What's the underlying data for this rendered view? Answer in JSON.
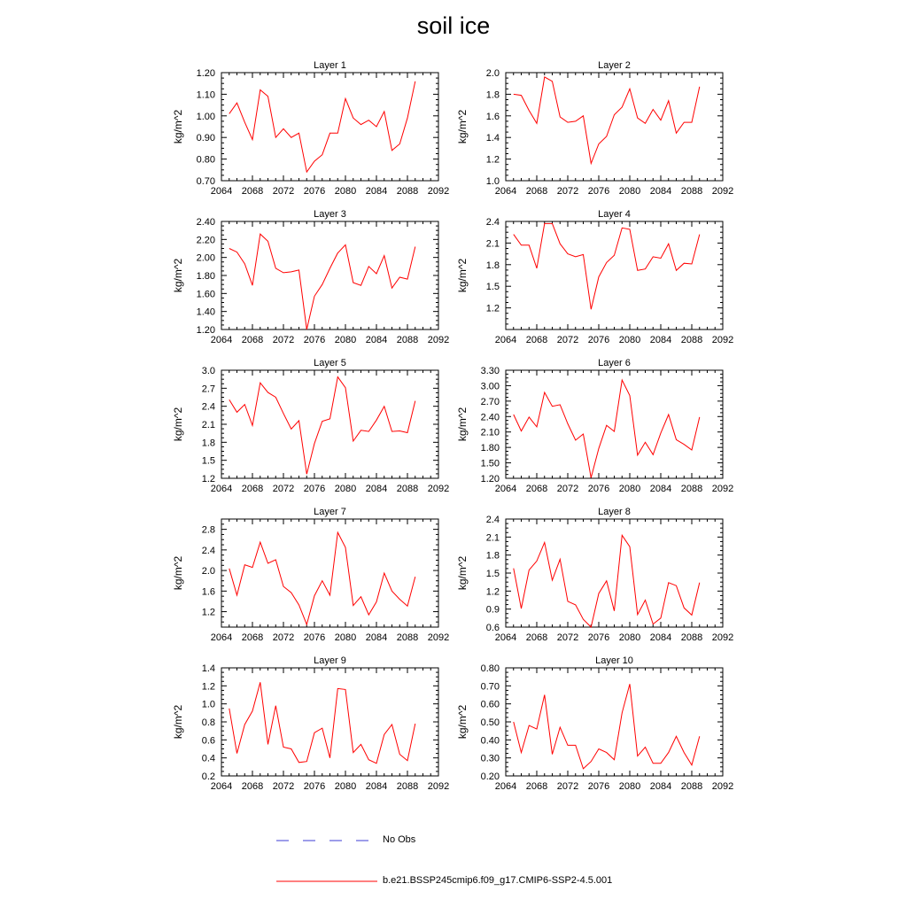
{
  "title": "soil ice",
  "legend": {
    "obs_label": "No Obs",
    "model_label": "b.e21.BSSP245cmip6.f09_g17.CMIP6-SSP2-4.5.001",
    "obs_color": "#3b3bd6",
    "model_color": "#ff0000"
  },
  "chart_data": [
    {
      "type": "line",
      "title": "Layer 1",
      "xlabel": "",
      "ylabel": "kg/m^2",
      "xlim": [
        2064,
        2092
      ],
      "ylim": [
        0.7,
        1.2
      ],
      "xticks": [
        2064,
        2068,
        2072,
        2076,
        2080,
        2084,
        2088,
        2092
      ],
      "yticks": [
        "0.70",
        "0.80",
        "0.90",
        "1.00",
        "1.10",
        "1.20"
      ],
      "series": [
        {
          "x": [
            2065,
            2066,
            2067,
            2068,
            2069,
            2070,
            2071,
            2072,
            2073,
            2074,
            2075,
            2076,
            2077,
            2078,
            2079,
            2080,
            2081,
            2082,
            2083,
            2084,
            2085,
            2086,
            2087,
            2088,
            2089
          ],
          "values": [
            1.01,
            1.06,
            0.97,
            0.89,
            1.12,
            1.09,
            0.9,
            0.94,
            0.9,
            0.92,
            0.74,
            0.79,
            0.82,
            0.92,
            0.92,
            1.08,
            0.99,
            0.96,
            0.98,
            0.95,
            1.02,
            0.84,
            0.87,
            0.99,
            1.16
          ]
        }
      ]
    },
    {
      "type": "line",
      "title": "Layer 2",
      "xlabel": "",
      "ylabel": "kg/m^2",
      "xlim": [
        2064,
        2092
      ],
      "ylim": [
        1.0,
        2.0
      ],
      "xticks": [
        2064,
        2068,
        2072,
        2076,
        2080,
        2084,
        2088,
        2092
      ],
      "yticks": [
        "1.0",
        "1.2",
        "1.4",
        "1.6",
        "1.8",
        "2.0"
      ],
      "series": [
        {
          "x": [
            2065,
            2066,
            2067,
            2068,
            2069,
            2070,
            2071,
            2072,
            2073,
            2074,
            2075,
            2076,
            2077,
            2078,
            2079,
            2080,
            2081,
            2082,
            2083,
            2084,
            2085,
            2086,
            2087,
            2088,
            2089
          ],
          "values": [
            1.8,
            1.79,
            1.65,
            1.53,
            1.96,
            1.92,
            1.59,
            1.54,
            1.55,
            1.6,
            1.16,
            1.34,
            1.41,
            1.61,
            1.68,
            1.85,
            1.58,
            1.53,
            1.66,
            1.56,
            1.74,
            1.44,
            1.54,
            1.54,
            1.87
          ]
        }
      ]
    },
    {
      "type": "line",
      "title": "Layer 3",
      "xlabel": "",
      "ylabel": "kg/m^2",
      "xlim": [
        2064,
        2092
      ],
      "ylim": [
        1.2,
        2.4
      ],
      "xticks": [
        2064,
        2068,
        2072,
        2076,
        2080,
        2084,
        2088,
        2092
      ],
      "yticks": [
        "1.20",
        "1.40",
        "1.60",
        "1.80",
        "2.00",
        "2.20",
        "2.40"
      ],
      "series": [
        {
          "x": [
            2065,
            2066,
            2067,
            2068,
            2069,
            2070,
            2071,
            2072,
            2073,
            2074,
            2075,
            2076,
            2077,
            2078,
            2079,
            2080,
            2081,
            2082,
            2083,
            2084,
            2085,
            2086,
            2087,
            2088,
            2089
          ],
          "values": [
            2.1,
            2.06,
            1.93,
            1.69,
            2.26,
            2.18,
            1.88,
            1.83,
            1.84,
            1.86,
            1.2,
            1.57,
            1.7,
            1.88,
            2.05,
            2.14,
            1.72,
            1.69,
            1.9,
            1.82,
            2.02,
            1.66,
            1.78,
            1.76,
            2.12
          ]
        }
      ]
    },
    {
      "type": "line",
      "title": "Layer 4",
      "xlabel": "",
      "ylabel": "kg/m^2",
      "xlim": [
        2064,
        2092
      ],
      "ylim": [
        0.9,
        2.4
      ],
      "xticks": [
        2064,
        2068,
        2072,
        2076,
        2080,
        2084,
        2088,
        2092
      ],
      "yticks": [
        "1.2",
        "1.5",
        "1.8",
        "2.1",
        "2.4"
      ],
      "series": [
        {
          "x": [
            2065,
            2066,
            2067,
            2068,
            2069,
            2070,
            2071,
            2072,
            2073,
            2074,
            2075,
            2076,
            2077,
            2078,
            2079,
            2080,
            2081,
            2082,
            2083,
            2084,
            2085,
            2086,
            2087,
            2088,
            2089
          ],
          "values": [
            2.22,
            2.07,
            2.07,
            1.75,
            2.37,
            2.37,
            2.09,
            1.95,
            1.91,
            1.94,
            1.18,
            1.63,
            1.83,
            1.93,
            2.31,
            2.29,
            1.72,
            1.74,
            1.91,
            1.89,
            2.09,
            1.72,
            1.82,
            1.81,
            2.22
          ]
        }
      ]
    },
    {
      "type": "line",
      "title": "Layer 5",
      "xlabel": "",
      "ylabel": "kg/m^2",
      "xlim": [
        2064,
        2092
      ],
      "ylim": [
        1.2,
        3.0
      ],
      "xticks": [
        2064,
        2068,
        2072,
        2076,
        2080,
        2084,
        2088,
        2092
      ],
      "yticks": [
        "1.2",
        "1.5",
        "1.8",
        "2.1",
        "2.4",
        "2.7",
        "3.0"
      ],
      "series": [
        {
          "x": [
            2065,
            2066,
            2067,
            2068,
            2069,
            2070,
            2071,
            2072,
            2073,
            2074,
            2075,
            2076,
            2077,
            2078,
            2079,
            2080,
            2081,
            2082,
            2083,
            2084,
            2085,
            2086,
            2087,
            2088,
            2089
          ],
          "values": [
            2.51,
            2.3,
            2.43,
            2.08,
            2.79,
            2.63,
            2.55,
            2.28,
            2.02,
            2.16,
            1.27,
            1.78,
            2.15,
            2.19,
            2.89,
            2.71,
            1.82,
            2.0,
            1.98,
            2.17,
            2.4,
            1.98,
            1.99,
            1.96,
            2.49
          ]
        }
      ]
    },
    {
      "type": "line",
      "title": "Layer 6",
      "xlabel": "",
      "ylabel": "kg/m^2",
      "xlim": [
        2064,
        2092
      ],
      "ylim": [
        1.2,
        3.3
      ],
      "xticks": [
        2064,
        2068,
        2072,
        2076,
        2080,
        2084,
        2088,
        2092
      ],
      "yticks": [
        "1.20",
        "1.50",
        "1.80",
        "2.10",
        "2.40",
        "2.70",
        "3.00",
        "3.30"
      ],
      "series": [
        {
          "x": [
            2065,
            2066,
            2067,
            2068,
            2069,
            2070,
            2071,
            2072,
            2073,
            2074,
            2075,
            2076,
            2077,
            2078,
            2079,
            2080,
            2081,
            2082,
            2083,
            2084,
            2085,
            2086,
            2087,
            2088,
            2089
          ],
          "values": [
            2.44,
            2.12,
            2.39,
            2.2,
            2.87,
            2.6,
            2.63,
            2.26,
            1.94,
            2.06,
            1.21,
            1.78,
            2.23,
            2.11,
            3.11,
            2.81,
            1.65,
            1.9,
            1.66,
            2.08,
            2.44,
            1.95,
            1.86,
            1.75,
            2.39
          ]
        }
      ]
    },
    {
      "type": "line",
      "title": "Layer 7",
      "xlabel": "",
      "ylabel": "kg/m^2",
      "xlim": [
        2064,
        2092
      ],
      "ylim": [
        0.9,
        3.0
      ],
      "xticks": [
        2064,
        2068,
        2072,
        2076,
        2080,
        2084,
        2088,
        2092
      ],
      "yticks": [
        "1.2",
        "1.6",
        "2.0",
        "2.4",
        "2.8"
      ],
      "series": [
        {
          "x": [
            2065,
            2066,
            2067,
            2068,
            2069,
            2070,
            2071,
            2072,
            2073,
            2074,
            2075,
            2076,
            2077,
            2078,
            2079,
            2080,
            2081,
            2082,
            2083,
            2084,
            2085,
            2086,
            2087,
            2088,
            2089
          ],
          "values": [
            2.04,
            1.52,
            2.11,
            2.06,
            2.55,
            2.14,
            2.21,
            1.69,
            1.57,
            1.33,
            0.95,
            1.51,
            1.8,
            1.52,
            2.74,
            2.45,
            1.32,
            1.49,
            1.14,
            1.39,
            1.95,
            1.6,
            1.44,
            1.31,
            1.88
          ]
        }
      ]
    },
    {
      "type": "line",
      "title": "Layer 8",
      "xlabel": "",
      "ylabel": "kg/m^2",
      "xlim": [
        2064,
        2092
      ],
      "ylim": [
        0.6,
        2.4
      ],
      "xticks": [
        2064,
        2068,
        2072,
        2076,
        2080,
        2084,
        2088,
        2092
      ],
      "yticks": [
        "0.6",
        "0.9",
        "1.2",
        "1.5",
        "1.8",
        "2.1",
        "2.4"
      ],
      "series": [
        {
          "x": [
            2065,
            2066,
            2067,
            2068,
            2069,
            2070,
            2071,
            2072,
            2073,
            2074,
            2075,
            2076,
            2077,
            2078,
            2079,
            2080,
            2081,
            2082,
            2083,
            2084,
            2085,
            2086,
            2087,
            2088,
            2089
          ],
          "values": [
            1.58,
            0.91,
            1.55,
            1.7,
            2.01,
            1.38,
            1.73,
            1.03,
            0.97,
            0.73,
            0.6,
            1.16,
            1.37,
            0.87,
            2.13,
            1.94,
            0.81,
            1.05,
            0.65,
            0.75,
            1.34,
            1.29,
            0.92,
            0.8,
            1.34
          ]
        }
      ]
    },
    {
      "type": "line",
      "title": "Layer 9",
      "xlabel": "",
      "ylabel": "kg/m^2",
      "xlim": [
        2064,
        2092
      ],
      "ylim": [
        0.2,
        1.4
      ],
      "xticks": [
        2064,
        2068,
        2072,
        2076,
        2080,
        2084,
        2088,
        2092
      ],
      "yticks": [
        "0.2",
        "0.4",
        "0.6",
        "0.8",
        "1.0",
        "1.2",
        "1.4"
      ],
      "series": [
        {
          "x": [
            2065,
            2066,
            2067,
            2068,
            2069,
            2070,
            2071,
            2072,
            2073,
            2074,
            2075,
            2076,
            2077,
            2078,
            2079,
            2080,
            2081,
            2082,
            2083,
            2084,
            2085,
            2086,
            2087,
            2088,
            2089
          ],
          "values": [
            0.95,
            0.45,
            0.77,
            0.92,
            1.24,
            0.55,
            0.98,
            0.52,
            0.5,
            0.35,
            0.36,
            0.68,
            0.73,
            0.4,
            1.17,
            1.16,
            0.46,
            0.55,
            0.38,
            0.34,
            0.66,
            0.77,
            0.44,
            0.37,
            0.78
          ]
        }
      ]
    },
    {
      "type": "line",
      "title": "Layer 10",
      "xlabel": "",
      "ylabel": "kg/m^2",
      "xlim": [
        2064,
        2092
      ],
      "ylim": [
        0.2,
        0.8
      ],
      "xticks": [
        2064,
        2068,
        2072,
        2076,
        2080,
        2084,
        2088,
        2092
      ],
      "yticks": [
        "0.20",
        "0.30",
        "0.40",
        "0.50",
        "0.60",
        "0.70",
        "0.80"
      ],
      "series": [
        {
          "x": [
            2065,
            2066,
            2067,
            2068,
            2069,
            2070,
            2071,
            2072,
            2073,
            2074,
            2075,
            2076,
            2077,
            2078,
            2079,
            2080,
            2081,
            2082,
            2083,
            2084,
            2085,
            2086,
            2087,
            2088,
            2089
          ],
          "values": [
            0.5,
            0.33,
            0.48,
            0.46,
            0.65,
            0.32,
            0.47,
            0.37,
            0.37,
            0.24,
            0.28,
            0.35,
            0.33,
            0.29,
            0.55,
            0.71,
            0.31,
            0.36,
            0.27,
            0.27,
            0.33,
            0.42,
            0.33,
            0.26,
            0.42
          ]
        }
      ]
    }
  ]
}
